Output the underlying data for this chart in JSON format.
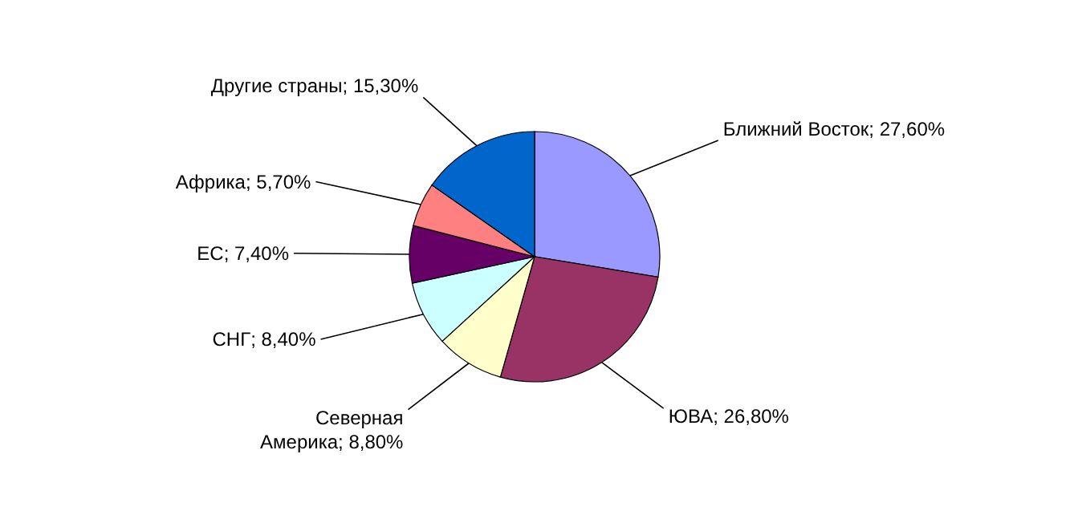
{
  "chart_data": {
    "type": "pie",
    "categories": [
      "Ближний Восток",
      "ЮВА",
      "Северная Америка",
      "СНГ",
      "ЕС",
      "Африка",
      "Другие страны"
    ],
    "values": [
      27.6,
      26.8,
      8.8,
      8.4,
      7.4,
      5.7,
      15.3
    ],
    "value_labels": [
      "27,60%",
      "26,80%",
      "8,80%",
      "8,40%",
      "7,40%",
      "5,70%",
      "15,30%"
    ],
    "colors": [
      "#9999ff",
      "#993366",
      "#ffffcc",
      "#ccffff",
      "#660066",
      "#ff8080",
      "#0066cc"
    ]
  }
}
